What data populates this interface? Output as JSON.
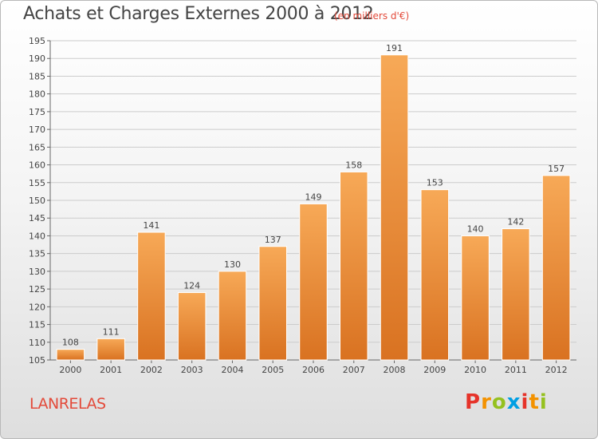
{
  "header": {
    "title": "Achats et Charges Externes 2000 à 2012",
    "subtitle": "(en milliers d'€)"
  },
  "footer": {
    "commune": "LANRELAS",
    "brand": "Proxiti",
    "brand_colors": [
      "#e6332a",
      "#f39200",
      "#95c11f",
      "#009fe3",
      "#e6332a",
      "#f39200",
      "#95c11f"
    ]
  },
  "colors": {
    "bar_top": "#f7a957",
    "bar_bottom": "#d97221",
    "grid": "#cccccc",
    "text": "#444444",
    "accent": "#e34a3a"
  },
  "chart_data": {
    "type": "bar",
    "title": "Achats et Charges Externes 2000 à 2012",
    "subtitle": "(en milliers d'€)",
    "categories": [
      "2000",
      "2001",
      "2002",
      "2003",
      "2004",
      "2005",
      "2006",
      "2007",
      "2008",
      "2009",
      "2010",
      "2011",
      "2012"
    ],
    "values": [
      108,
      111,
      141,
      124,
      130,
      137,
      149,
      158,
      191,
      153,
      140,
      142,
      157
    ],
    "ylim": [
      105,
      195
    ],
    "yticks": [
      105,
      110,
      115,
      120,
      125,
      130,
      135,
      140,
      145,
      150,
      155,
      160,
      165,
      170,
      175,
      180,
      185,
      190,
      195
    ],
    "grid": true,
    "xlabel": "",
    "ylabel": ""
  }
}
